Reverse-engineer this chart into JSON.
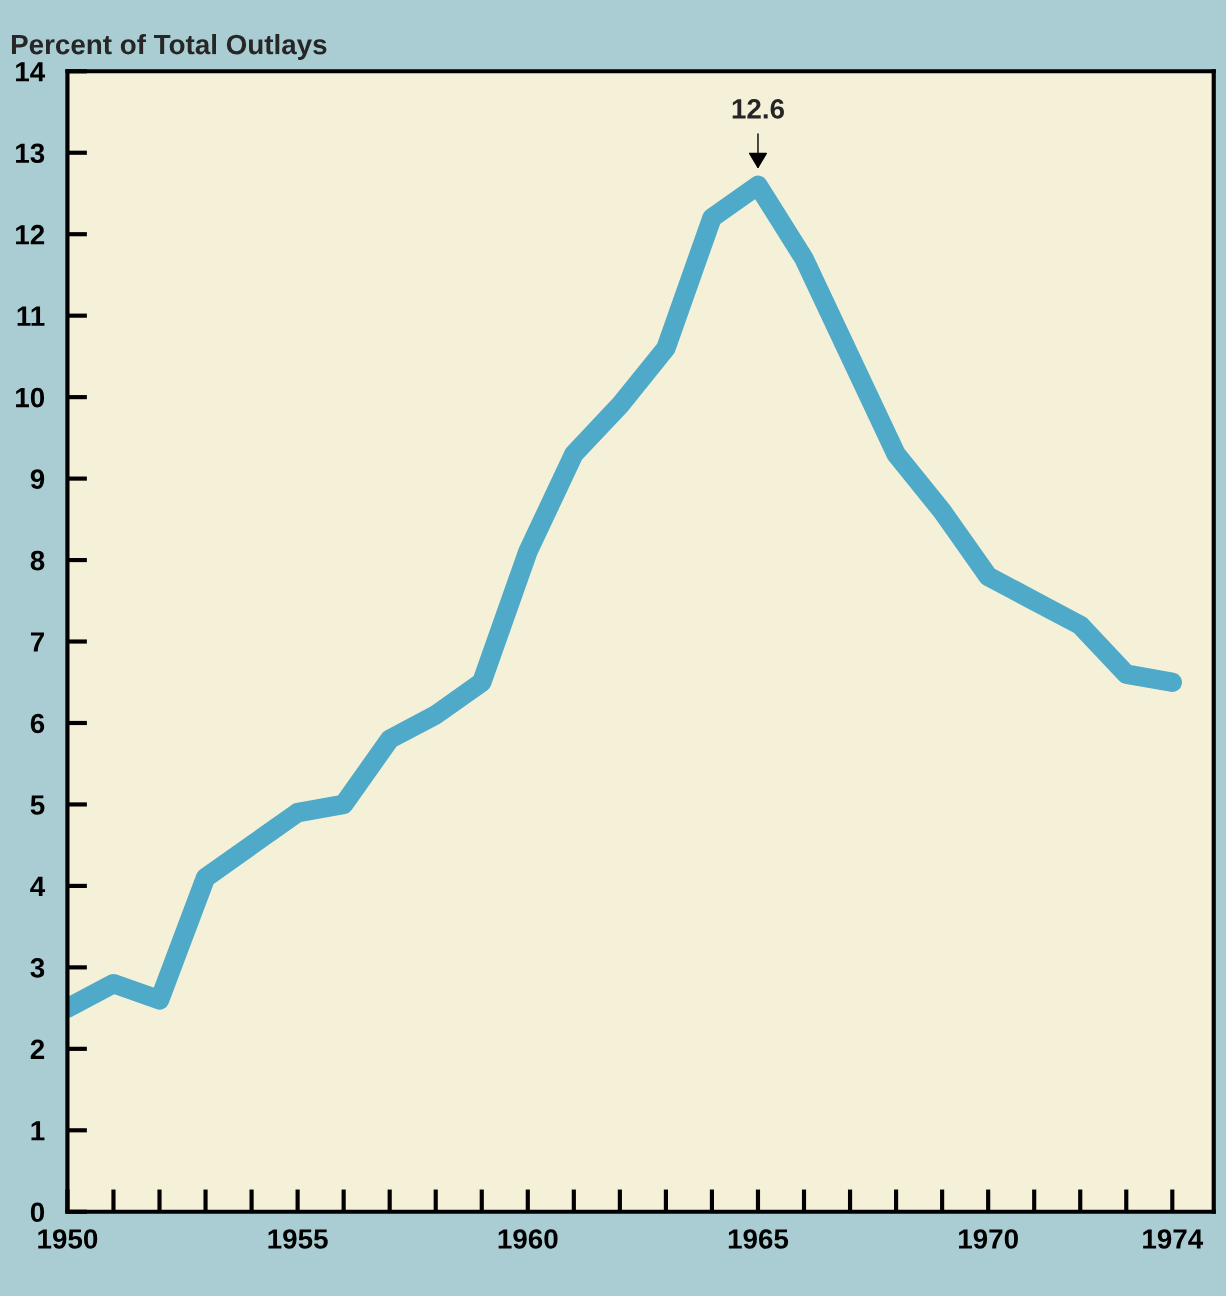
{
  "chart_data": {
    "type": "line",
    "ylabel": "Percent of Total Outlays",
    "x": [
      1950,
      1951,
      1952,
      1953,
      1954,
      1955,
      1956,
      1957,
      1958,
      1959,
      1960,
      1961,
      1962,
      1963,
      1964,
      1965,
      1966,
      1967,
      1968,
      1969,
      1970,
      1971,
      1972,
      1973,
      1974
    ],
    "series": [
      {
        "color": "#4fa9c9",
        "values": [
          2.5,
          2.8,
          2.6,
          4.1,
          4.5,
          4.9,
          5.0,
          5.8,
          6.1,
          6.5,
          8.1,
          9.3,
          9.9,
          10.6,
          12.2,
          12.6,
          11.7,
          10.5,
          9.3,
          8.6,
          7.8,
          7.5,
          7.2,
          6.6,
          6.5
        ]
      }
    ],
    "annotations": [
      {
        "text": "12.6",
        "x": 1965,
        "y": 12.6
      }
    ],
    "xlim": [
      1950,
      1974.9
    ],
    "ylim": [
      0,
      14
    ],
    "xticks": [
      1950,
      {
        "value": 1951,
        "label": null
      },
      {
        "value": 1952,
        "label": null
      },
      {
        "value": 1953,
        "label": null
      },
      {
        "value": 1954,
        "label": null
      },
      1955,
      {
        "value": 1956,
        "label": null
      },
      {
        "value": 1957,
        "label": null
      },
      {
        "value": 1958,
        "label": null
      },
      {
        "value": 1959,
        "label": null
      },
      1960,
      {
        "value": 1961,
        "label": null
      },
      {
        "value": 1962,
        "label": null
      },
      {
        "value": 1963,
        "label": null
      },
      {
        "value": 1964,
        "label": null
      },
      1965,
      {
        "value": 1966,
        "label": null
      },
      {
        "value": 1967,
        "label": null
      },
      {
        "value": 1968,
        "label": null
      },
      {
        "value": 1969,
        "label": null
      },
      1970,
      {
        "value": 1971,
        "label": null
      },
      {
        "value": 1972,
        "label": null
      },
      {
        "value": 1973,
        "label": null
      },
      1974
    ],
    "yticks": [
      0,
      1,
      2,
      3,
      4,
      5,
      6,
      7,
      8,
      9,
      10,
      11,
      12,
      13,
      14
    ],
    "grid": false,
    "legend": false,
    "marker": "none",
    "line_style": "solid"
  }
}
